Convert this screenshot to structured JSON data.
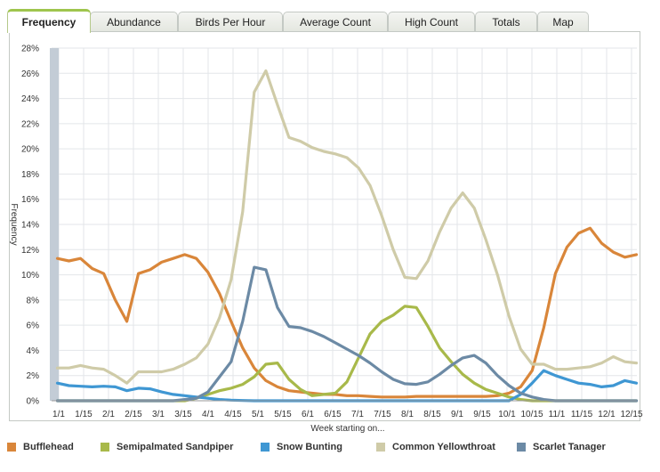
{
  "tabs": [
    {
      "label": "Frequency",
      "active": true
    },
    {
      "label": "Abundance",
      "active": false
    },
    {
      "label": "Birds Per Hour",
      "active": false
    },
    {
      "label": "Average Count",
      "active": false
    },
    {
      "label": "High Count",
      "active": false
    },
    {
      "label": "Totals",
      "active": false
    },
    {
      "label": "Map",
      "active": false
    }
  ],
  "chart_data": {
    "type": "line",
    "title": "",
    "xlabel": "Week starting on...",
    "ylabel": "Frequency",
    "ylim": [
      0,
      28
    ],
    "yticks": [
      "0%",
      "2%",
      "4%",
      "6%",
      "8%",
      "10%",
      "12%",
      "14%",
      "16%",
      "18%",
      "20%",
      "22%",
      "24%",
      "26%",
      "28%"
    ],
    "xtick_labels": [
      "1/1",
      "1/15",
      "2/1",
      "2/15",
      "3/1",
      "3/15",
      "4/1",
      "4/15",
      "5/1",
      "5/15",
      "6/1",
      "6/15",
      "7/1",
      "7/15",
      "8/1",
      "8/15",
      "9/1",
      "9/15",
      "10/1",
      "10/15",
      "11/1",
      "11/15",
      "12/1",
      "12/15"
    ],
    "grid": true,
    "legend_position": "bottom",
    "series": [
      {
        "name": "Bufflehead",
        "color": "#d9863a",
        "values": [
          11.3,
          11.1,
          11.3,
          10.5,
          10.1,
          8.0,
          6.3,
          10.1,
          10.4,
          11.0,
          11.3,
          11.6,
          11.3,
          10.2,
          8.5,
          6.3,
          4.2,
          2.6,
          1.6,
          1.1,
          0.8,
          0.7,
          0.6,
          0.5,
          0.5,
          0.4,
          0.4,
          0.35,
          0.3,
          0.3,
          0.3,
          0.35,
          0.35,
          0.35,
          0.35,
          0.35,
          0.35,
          0.35,
          0.4,
          0.6,
          1.1,
          2.4,
          5.8,
          10.1,
          12.2,
          13.3,
          13.7,
          12.5,
          11.8,
          11.4,
          11.6
        ]
      },
      {
        "name": "Semipalmated Sandpiper",
        "color": "#a8b94a",
        "values": [
          0,
          0,
          0,
          0,
          0,
          0,
          0,
          0,
          0,
          0,
          0,
          0,
          0.2,
          0.5,
          0.8,
          1.0,
          1.3,
          1.9,
          2.9,
          3.0,
          1.7,
          0.9,
          0.4,
          0.5,
          0.6,
          1.5,
          3.4,
          5.3,
          6.3,
          6.8,
          7.5,
          7.4,
          5.9,
          4.2,
          3.1,
          2.1,
          1.4,
          0.9,
          0.6,
          0.3,
          0.1,
          0,
          0,
          0,
          0,
          0,
          0,
          0,
          0,
          0,
          0
        ]
      },
      {
        "name": "Snow Bunting",
        "color": "#3f97d3",
        "values": [
          1.4,
          1.2,
          1.15,
          1.1,
          1.15,
          1.1,
          0.8,
          1.0,
          0.95,
          0.7,
          0.5,
          0.4,
          0.3,
          0.2,
          0.1,
          0.05,
          0.02,
          0,
          0,
          0,
          0,
          0,
          0,
          0,
          0,
          0,
          0,
          0,
          0,
          0,
          0,
          0,
          0,
          0,
          0,
          0,
          0,
          0,
          0,
          0,
          0.5,
          1.4,
          2.4,
          2.0,
          1.7,
          1.4,
          1.3,
          1.1,
          1.2,
          1.6,
          1.4
        ]
      },
      {
        "name": "Common Yellowthroat",
        "color": "#cfcba8",
        "values": [
          2.6,
          2.6,
          2.8,
          2.6,
          2.5,
          2.0,
          1.4,
          2.3,
          2.3,
          2.3,
          2.5,
          2.9,
          3.4,
          4.5,
          6.6,
          9.6,
          15.0,
          24.5,
          26.2,
          23.5,
          20.9,
          20.6,
          20.1,
          19.8,
          19.6,
          19.3,
          18.5,
          17.1,
          14.7,
          12.0,
          9.8,
          9.7,
          11.1,
          13.4,
          15.3,
          16.5,
          15.3,
          12.8,
          10.0,
          6.7,
          4.1,
          2.9,
          2.9,
          2.5,
          2.5,
          2.6,
          2.7,
          3.0,
          3.5,
          3.1,
          3.0
        ]
      },
      {
        "name": "Scarlet Tanager",
        "color": "#6c8aa5",
        "values": [
          0,
          0,
          0,
          0,
          0,
          0,
          0,
          0,
          0,
          0,
          0,
          0.1,
          0.2,
          0.7,
          1.9,
          3.1,
          6.3,
          10.6,
          10.4,
          7.4,
          5.9,
          5.8,
          5.5,
          5.1,
          4.6,
          4.1,
          3.6,
          3.0,
          2.3,
          1.7,
          1.35,
          1.3,
          1.5,
          2.1,
          2.8,
          3.4,
          3.6,
          3.0,
          2.0,
          1.2,
          0.6,
          0.3,
          0.1,
          0,
          0,
          0,
          0,
          0,
          0,
          0,
          0
        ]
      }
    ]
  }
}
